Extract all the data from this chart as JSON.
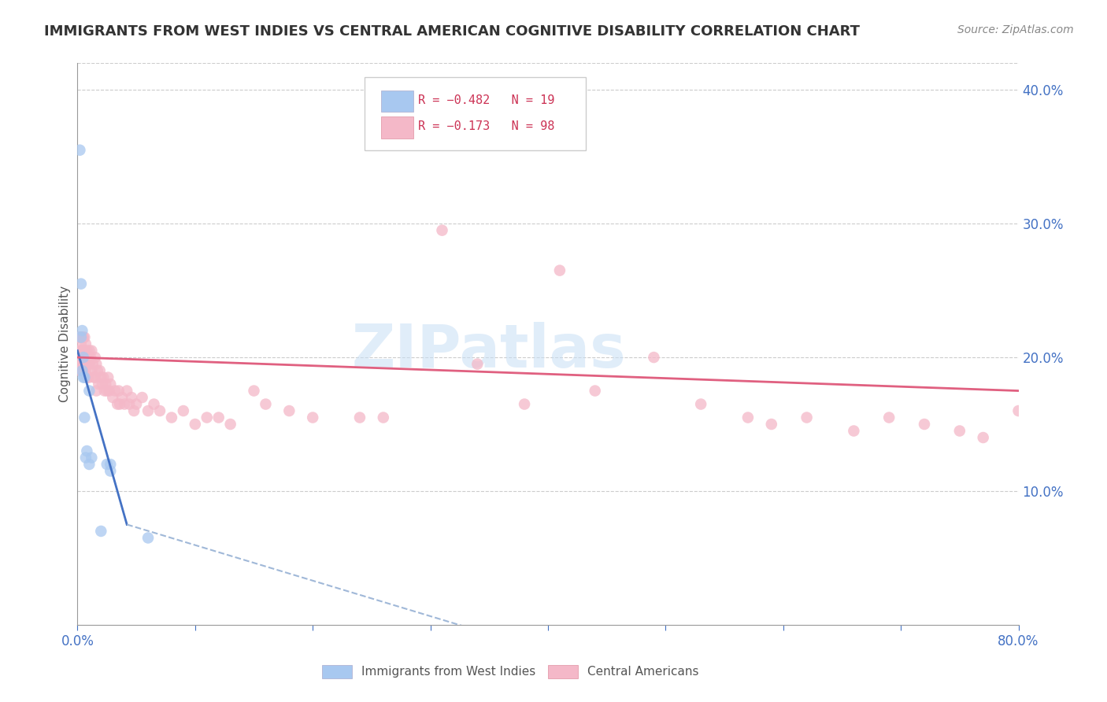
{
  "title": "IMMIGRANTS FROM WEST INDIES VS CENTRAL AMERICAN COGNITIVE DISABILITY CORRELATION CHART",
  "source": "Source: ZipAtlas.com",
  "ylabel": "Cognitive Disability",
  "right_yticks": [
    0.1,
    0.2,
    0.3,
    0.4
  ],
  "right_yticklabels": [
    "10.0%",
    "20.0%",
    "30.0%",
    "40.0%"
  ],
  "watermark": "ZIPatlas",
  "blue_color": "#a8c8f0",
  "blue_line_color": "#4472c4",
  "pink_color": "#f4b8c8",
  "pink_line_color": "#e06080",
  "dashed_line_color": "#a0b8d8",
  "axis_color": "#4472c4",
  "grid_color": "#cccccc",
  "background_color": "#ffffff",
  "wi_x": [
    0.002,
    0.003,
    0.003,
    0.004,
    0.004,
    0.005,
    0.005,
    0.006,
    0.006,
    0.007,
    0.008,
    0.01,
    0.01,
    0.012,
    0.02,
    0.025,
    0.028,
    0.028,
    0.06
  ],
  "wi_y": [
    0.355,
    0.255,
    0.215,
    0.22,
    0.19,
    0.2,
    0.185,
    0.185,
    0.155,
    0.125,
    0.13,
    0.12,
    0.175,
    0.125,
    0.07,
    0.12,
    0.12,
    0.115,
    0.065
  ],
  "ca_x": [
    0.001,
    0.001,
    0.002,
    0.002,
    0.002,
    0.002,
    0.003,
    0.003,
    0.003,
    0.003,
    0.004,
    0.004,
    0.004,
    0.004,
    0.005,
    0.005,
    0.005,
    0.005,
    0.006,
    0.006,
    0.006,
    0.006,
    0.007,
    0.007,
    0.007,
    0.008,
    0.008,
    0.008,
    0.009,
    0.009,
    0.01,
    0.01,
    0.01,
    0.011,
    0.012,
    0.012,
    0.013,
    0.014,
    0.015,
    0.015,
    0.016,
    0.016,
    0.017,
    0.018,
    0.019,
    0.02,
    0.021,
    0.022,
    0.023,
    0.024,
    0.025,
    0.026,
    0.027,
    0.028,
    0.03,
    0.032,
    0.034,
    0.035,
    0.036,
    0.038,
    0.04,
    0.042,
    0.044,
    0.046,
    0.048,
    0.05,
    0.055,
    0.06,
    0.065,
    0.07,
    0.08,
    0.09,
    0.1,
    0.11,
    0.12,
    0.13,
    0.15,
    0.16,
    0.18,
    0.2,
    0.24,
    0.26,
    0.31,
    0.34,
    0.38,
    0.41,
    0.44,
    0.49,
    0.53,
    0.57,
    0.59,
    0.62,
    0.66,
    0.69,
    0.72,
    0.75,
    0.77,
    0.8
  ],
  "ca_y": [
    0.215,
    0.2,
    0.215,
    0.205,
    0.195,
    0.19,
    0.215,
    0.21,
    0.2,
    0.195,
    0.215,
    0.205,
    0.2,
    0.195,
    0.215,
    0.205,
    0.2,
    0.19,
    0.215,
    0.205,
    0.2,
    0.19,
    0.21,
    0.2,
    0.19,
    0.205,
    0.2,
    0.185,
    0.2,
    0.195,
    0.205,
    0.195,
    0.185,
    0.2,
    0.205,
    0.19,
    0.195,
    0.185,
    0.2,
    0.185,
    0.195,
    0.175,
    0.19,
    0.18,
    0.19,
    0.185,
    0.18,
    0.185,
    0.175,
    0.18,
    0.175,
    0.185,
    0.175,
    0.18,
    0.17,
    0.175,
    0.165,
    0.175,
    0.165,
    0.17,
    0.165,
    0.175,
    0.165,
    0.17,
    0.16,
    0.165,
    0.17,
    0.16,
    0.165,
    0.16,
    0.155,
    0.16,
    0.15,
    0.155,
    0.155,
    0.15,
    0.175,
    0.165,
    0.16,
    0.155,
    0.155,
    0.155,
    0.295,
    0.195,
    0.165,
    0.265,
    0.175,
    0.2,
    0.165,
    0.155,
    0.15,
    0.155,
    0.145,
    0.155,
    0.15,
    0.145,
    0.14,
    0.16
  ],
  "blue_line": [
    0.0,
    0.042,
    0.205,
    0.075
  ],
  "blue_line_dashed": [
    0.042,
    0.55,
    0.075,
    -0.06
  ],
  "pink_line": [
    0.0,
    0.8,
    0.2,
    0.175
  ],
  "xlim": [
    0.0,
    0.8
  ],
  "ylim": [
    0.0,
    0.42
  ]
}
